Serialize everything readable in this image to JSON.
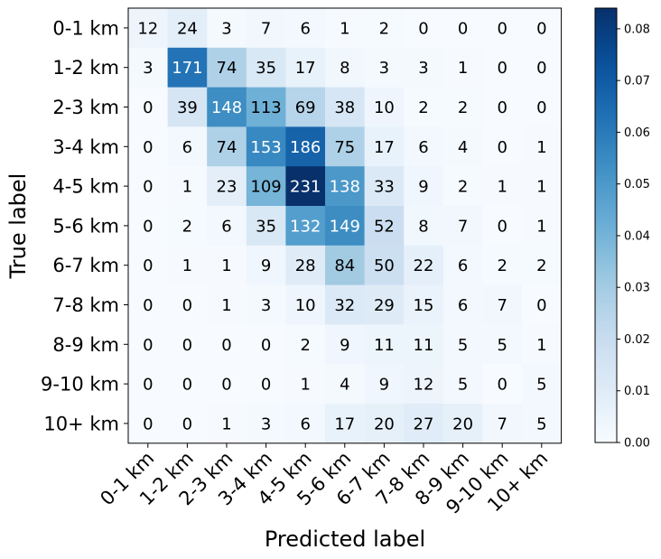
{
  "chart_data": {
    "type": "heatmap",
    "title": "",
    "xlabel": "Predicted label",
    "ylabel": "True label",
    "x_categories": [
      "0-1 km",
      "1-2 km",
      "2-3 km",
      "3-4 km",
      "4-5 km",
      "5-6 km",
      "6-7 km",
      "7-8 km",
      "8-9 km",
      "9-10 km",
      "10+ km"
    ],
    "y_categories": [
      "0-1 km",
      "1-2 km",
      "2-3 km",
      "3-4 km",
      "4-5 km",
      "5-6 km",
      "6-7 km",
      "7-8 km",
      "8-9 km",
      "9-10 km",
      "10+ km"
    ],
    "values": [
      [
        12,
        24,
        3,
        7,
        6,
        1,
        2,
        0,
        0,
        0,
        0
      ],
      [
        3,
        171,
        74,
        35,
        17,
        8,
        3,
        3,
        1,
        0,
        0
      ],
      [
        0,
        39,
        148,
        113,
        69,
        38,
        10,
        2,
        2,
        0,
        0
      ],
      [
        0,
        6,
        74,
        153,
        186,
        75,
        17,
        6,
        4,
        0,
        1
      ],
      [
        0,
        1,
        23,
        109,
        231,
        138,
        33,
        9,
        2,
        1,
        1
      ],
      [
        0,
        2,
        6,
        35,
        132,
        149,
        52,
        8,
        7,
        0,
        1
      ],
      [
        0,
        1,
        1,
        9,
        28,
        84,
        50,
        22,
        6,
        2,
        2
      ],
      [
        0,
        0,
        1,
        3,
        10,
        32,
        29,
        15,
        6,
        7,
        0
      ],
      [
        0,
        0,
        0,
        0,
        2,
        9,
        11,
        11,
        5,
        5,
        1
      ],
      [
        0,
        0,
        0,
        0,
        1,
        4,
        9,
        12,
        5,
        0,
        5
      ],
      [
        0,
        0,
        1,
        3,
        6,
        17,
        20,
        27,
        20,
        7,
        5
      ]
    ],
    "colormap": "Blues",
    "colorbar": {
      "range": [
        0.0,
        0.084
      ],
      "ticks": [
        0.0,
        0.01,
        0.02,
        0.03,
        0.04,
        0.05,
        0.06,
        0.07,
        0.08
      ],
      "tick_labels": [
        "0.00",
        "0.01",
        "0.02",
        "0.03",
        "0.04",
        "0.05",
        "0.06",
        "0.07",
        "0.08"
      ]
    },
    "text_color_dark": "#000000",
    "text_color_light": "#ffffff"
  }
}
